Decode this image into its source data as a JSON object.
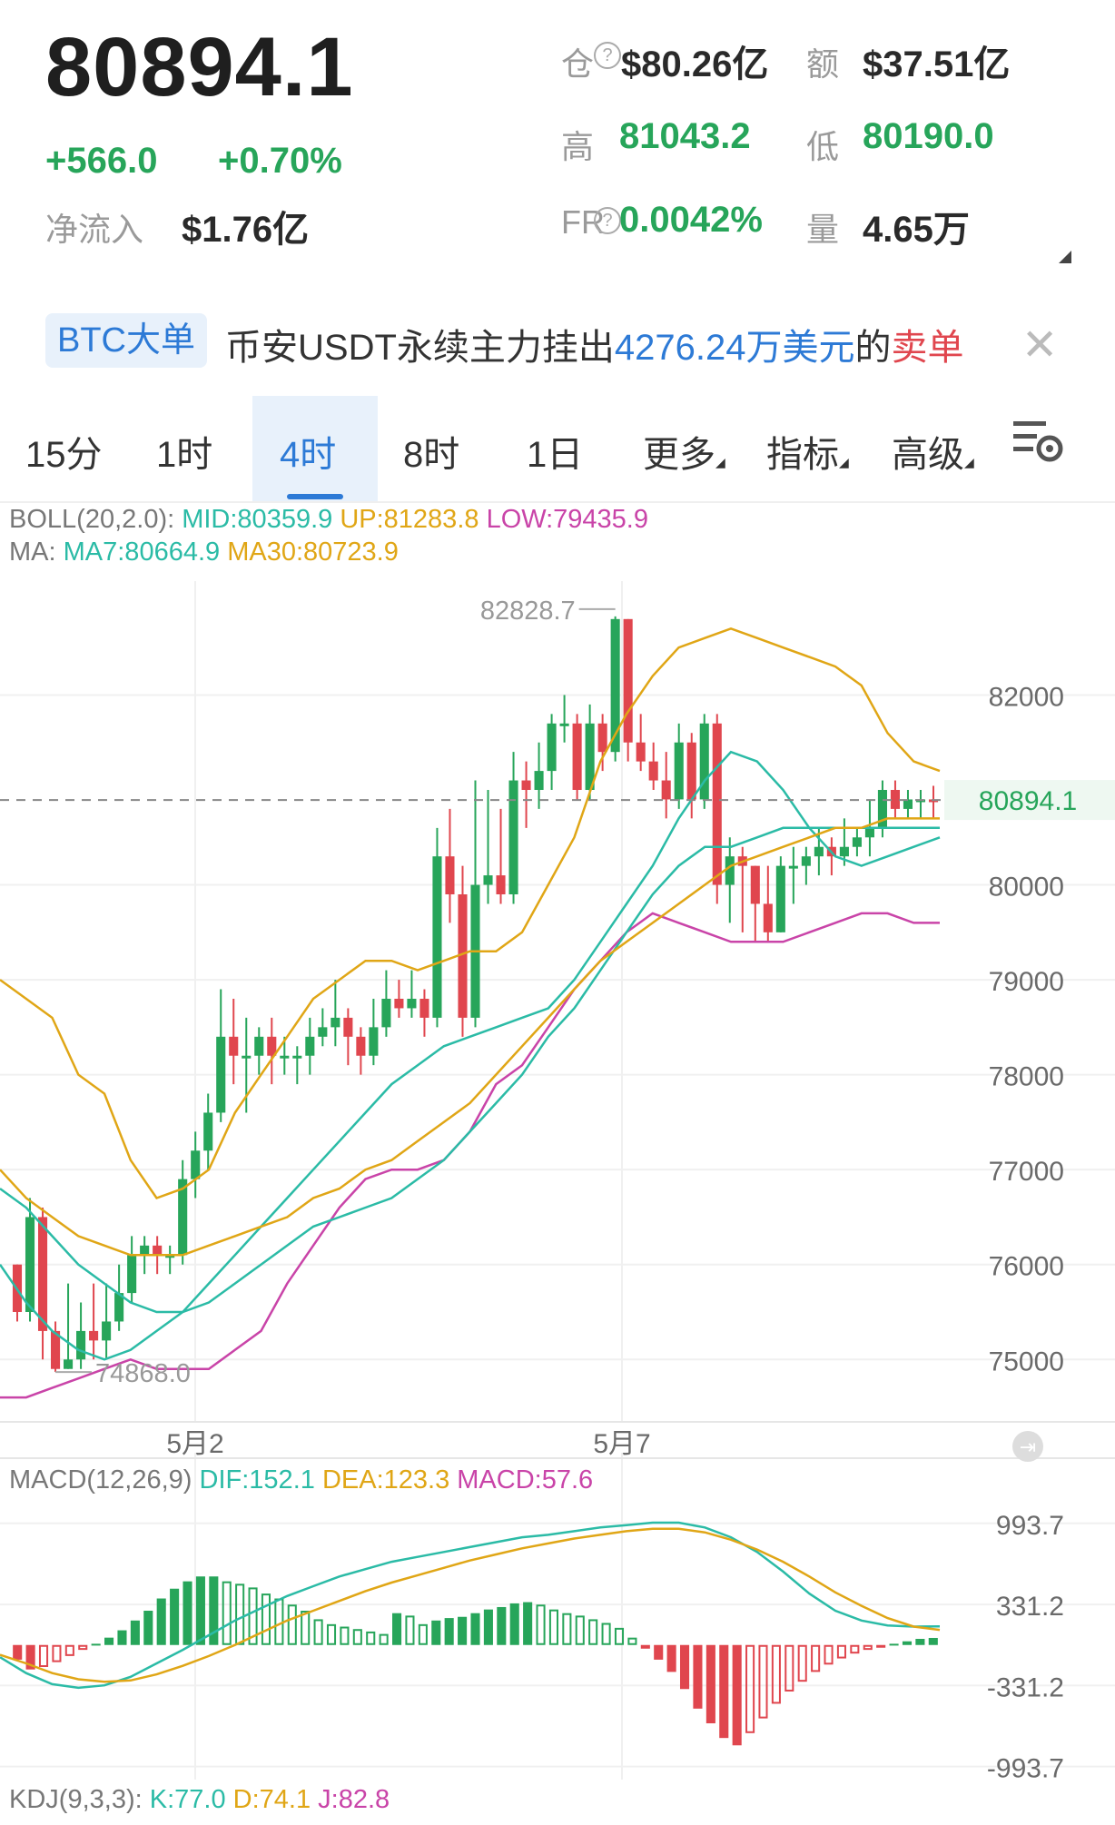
{
  "header": {
    "price": "80894.1",
    "change": "+566.0",
    "change_pct": "+0.70%",
    "net_inflow_label": "净流入",
    "net_inflow_value": "$1.76亿",
    "open_interest_label": "仓",
    "open_interest_value": "$80.26亿",
    "amount_label": "额",
    "amount_value": "$37.51亿",
    "high_label": "高",
    "high_value": "81043.2",
    "low_label": "低",
    "low_value": "80190.0",
    "fr_label": "FR",
    "fr_value": "0.0042%",
    "volume_label": "量",
    "volume_value": "4.65万"
  },
  "banner": {
    "tag": "BTC大单",
    "text_prefix": "币安USDT永续主力挂出",
    "amount": "4276.24万美元",
    "text_mid": "的",
    "side": "卖单"
  },
  "tabs": [
    {
      "label": "15分",
      "active": false
    },
    {
      "label": "1时",
      "active": false
    },
    {
      "label": "4时",
      "active": true
    },
    {
      "label": "8时",
      "active": false
    },
    {
      "label": "1日",
      "active": false
    },
    {
      "label": "更多",
      "active": false
    },
    {
      "label": "指标",
      "active": false
    },
    {
      "label": "高级",
      "active": false
    }
  ],
  "legends": {
    "boll_prefix": "BOLL(20,2.0):",
    "boll_mid": "MID:80359.9",
    "boll_up": "UP:81283.8",
    "boll_low": "LOW:79435.9",
    "ma_prefix": "MA:",
    "ma7": "MA7:80664.9",
    "ma30": "MA30:80723.9",
    "macd_prefix": "MACD(12,26,9)",
    "macd_dif": "DIF:152.1",
    "macd_dea": "DEA:123.3",
    "macd_val": "MACD:57.6",
    "kdj_prefix": "KDJ(9,3,3):",
    "kdj_k": "K:77.0",
    "kdj_d": "D:74.1",
    "kdj_j": "J:82.8"
  },
  "chart_data": {
    "type": "candlestick",
    "ylim": [
      74400,
      83200
    ],
    "y_ticks": [
      "82000",
      "80000",
      "79000",
      "78000",
      "77000",
      "76000",
      "75000"
    ],
    "x_labels": [
      "5月2",
      "5月7"
    ],
    "current_price": "80894.1",
    "annotations": {
      "high": "82828.7",
      "low": "74868.0"
    },
    "candles": [
      [
        76000,
        75500,
        76000,
        75400
      ],
      [
        75500,
        76500,
        76700,
        75400
      ],
      [
        76500,
        75300,
        76600,
        75000
      ],
      [
        75300,
        74900,
        75400,
        74868
      ],
      [
        74900,
        75000,
        75800,
        74900
      ],
      [
        75000,
        75300,
        75600,
        74900
      ],
      [
        75300,
        75200,
        75800,
        75000
      ],
      [
        75200,
        75400,
        75800,
        75000
      ],
      [
        75400,
        75700,
        76000,
        75300
      ],
      [
        75700,
        76100,
        76300,
        75600
      ],
      [
        76100,
        76200,
        76300,
        75900
      ],
      [
        76200,
        76100,
        76300,
        75900
      ],
      [
        76100,
        76100,
        76200,
        75900
      ],
      [
        76100,
        76900,
        77100,
        76000
      ],
      [
        76900,
        77200,
        77400,
        76700
      ],
      [
        77200,
        77600,
        77800,
        77000
      ],
      [
        77600,
        78400,
        78900,
        77500
      ],
      [
        78400,
        78200,
        78800,
        77900
      ],
      [
        78200,
        78200,
        78600,
        77600
      ],
      [
        78200,
        78400,
        78500,
        78000
      ],
      [
        78400,
        78200,
        78600,
        77900
      ],
      [
        78200,
        78200,
        78400,
        78000
      ],
      [
        78200,
        78200,
        78300,
        77900
      ],
      [
        78200,
        78400,
        78600,
        78000
      ],
      [
        78400,
        78500,
        78700,
        78300
      ],
      [
        78500,
        78600,
        79000,
        78300
      ],
      [
        78600,
        78400,
        78700,
        78100
      ],
      [
        78400,
        78200,
        78500,
        78000
      ],
      [
        78200,
        78500,
        78800,
        78100
      ],
      [
        78500,
        78800,
        79100,
        78400
      ],
      [
        78800,
        78700,
        79000,
        78600
      ],
      [
        78700,
        78800,
        79100,
        78600
      ],
      [
        78800,
        78600,
        78900,
        78400
      ],
      [
        78600,
        80300,
        80600,
        78500
      ],
      [
        80300,
        79900,
        80800,
        79600
      ],
      [
        79900,
        78600,
        80200,
        78400
      ],
      [
        78600,
        80000,
        81100,
        78500
      ],
      [
        80000,
        80100,
        81000,
        79800
      ],
      [
        80100,
        79900,
        80800,
        79800
      ],
      [
        79900,
        81100,
        81400,
        79800
      ],
      [
        81100,
        81000,
        81300,
        80600
      ],
      [
        81000,
        81200,
        81500,
        80800
      ],
      [
        81200,
        81700,
        81800,
        81000
      ],
      [
        81700,
        81700,
        82000,
        81500
      ],
      [
        81700,
        81000,
        81800,
        80900
      ],
      [
        81000,
        81700,
        81900,
        80900
      ],
      [
        81700,
        81400,
        81800,
        81200
      ],
      [
        81400,
        82800,
        82828.7,
        81300
      ],
      [
        82800,
        81500,
        82800,
        81300
      ],
      [
        81500,
        81300,
        81800,
        81200
      ],
      [
        81300,
        81100,
        81500,
        81000
      ],
      [
        81100,
        80900,
        81400,
        80700
      ],
      [
        80900,
        81500,
        81700,
        80800
      ],
      [
        81500,
        80900,
        81600,
        80700
      ],
      [
        80900,
        81700,
        81800,
        80800
      ],
      [
        81700,
        80000,
        81800,
        79800
      ],
      [
        80000,
        80300,
        80500,
        79600
      ],
      [
        80300,
        80200,
        80400,
        79500
      ],
      [
        80200,
        79800,
        80200,
        79400
      ],
      [
        79800,
        79500,
        80200,
        79400
      ],
      [
        79500,
        80200,
        80300,
        79500
      ],
      [
        80200,
        80200,
        80400,
        79800
      ],
      [
        80200,
        80300,
        80400,
        80000
      ],
      [
        80300,
        80400,
        80600,
        80100
      ],
      [
        80400,
        80300,
        80500,
        80100
      ],
      [
        80300,
        80400,
        80700,
        80200
      ],
      [
        80400,
        80500,
        80600,
        80300
      ],
      [
        80500,
        80600,
        80900,
        80300
      ],
      [
        80600,
        81000,
        81100,
        80500
      ],
      [
        81000,
        80800,
        81100,
        80700
      ],
      [
        80800,
        80900,
        81000,
        80700
      ],
      [
        80900,
        80900,
        81000,
        80700
      ],
      [
        80900,
        80894.1,
        81043.2,
        80700
      ]
    ],
    "boll_up": [
      79000,
      78800,
      78600,
      78000,
      77800,
      77100,
      76700,
      76800,
      77000,
      77600,
      78000,
      78400,
      78800,
      79000,
      79200,
      79200,
      79100,
      79200,
      79300,
      79300,
      79500,
      80000,
      80500,
      81300,
      81800,
      82200,
      82500,
      82600,
      82700,
      82600,
      82500,
      82400,
      82300,
      82100,
      81600,
      81300,
      81200
    ],
    "boll_mid": [
      76800,
      76600,
      76300,
      76000,
      75800,
      75600,
      75500,
      75500,
      75600,
      75800,
      76000,
      76200,
      76400,
      76500,
      76600,
      76700,
      76900,
      77100,
      77400,
      77700,
      78000,
      78400,
      78700,
      79100,
      79500,
      79900,
      80200,
      80400,
      80400,
      80500,
      80600,
      80600,
      80600,
      80600,
      80600,
      80600,
      80600
    ],
    "boll_low": [
      74600,
      74600,
      74700,
      74800,
      74900,
      75000,
      74900,
      74900,
      74900,
      75100,
      75300,
      75800,
      76200,
      76600,
      76900,
      77000,
      77000,
      77100,
      77400,
      77900,
      78100,
      78500,
      78900,
      79200,
      79500,
      79700,
      79600,
      79500,
      79400,
      79400,
      79400,
      79500,
      79600,
      79700,
      79700,
      79600,
      79600
    ],
    "ma7": [
      76000,
      75600,
      75300,
      75100,
      75000,
      75100,
      75300,
      75500,
      75800,
      76100,
      76400,
      76700,
      77000,
      77300,
      77600,
      77900,
      78100,
      78300,
      78400,
      78500,
      78600,
      78700,
      79000,
      79400,
      79800,
      80200,
      80700,
      81100,
      81400,
      81300,
      81000,
      80600,
      80300,
      80200,
      80300,
      80400,
      80500
    ],
    "ma30": [
      77000,
      76700,
      76500,
      76300,
      76200,
      76100,
      76100,
      76100,
      76200,
      76300,
      76400,
      76500,
      76700,
      76800,
      77000,
      77100,
      77300,
      77500,
      77700,
      78000,
      78300,
      78600,
      78900,
      79200,
      79400,
      79600,
      79800,
      80000,
      80200,
      80300,
      80400,
      80500,
      80600,
      80600,
      80700,
      80700,
      80700
    ],
    "macd": {
      "ylim": [
        -1100,
        1200
      ],
      "y_ticks": [
        "993.7",
        "331.2",
        "-331.2",
        "-993.7"
      ],
      "hist": [
        -120,
        -200,
        -180,
        -140,
        -90,
        -40,
        10,
        60,
        120,
        200,
        280,
        380,
        460,
        520,
        560,
        560,
        520,
        500,
        470,
        420,
        380,
        330,
        280,
        210,
        170,
        150,
        130,
        110,
        90,
        260,
        240,
        170,
        200,
        220,
        230,
        260,
        290,
        310,
        340,
        350,
        330,
        290,
        260,
        240,
        210,
        180,
        140,
        60,
        -30,
        -120,
        -220,
        -360,
        -520,
        -640,
        -760,
        -820,
        -720,
        -600,
        -480,
        -380,
        -300,
        -220,
        -160,
        -110,
        -70,
        -40,
        -20,
        10,
        30,
        50,
        57.6
      ],
      "dif": [
        -100,
        -230,
        -320,
        -350,
        -330,
        -260,
        -150,
        -40,
        80,
        200,
        300,
        400,
        480,
        560,
        620,
        680,
        720,
        760,
        800,
        840,
        880,
        900,
        930,
        960,
        980,
        1000,
        1000,
        960,
        880,
        760,
        600,
        420,
        280,
        200,
        160,
        150,
        152.1
      ],
      "dea": [
        -80,
        -150,
        -230,
        -280,
        -300,
        -290,
        -240,
        -170,
        -90,
        0,
        100,
        200,
        280,
        360,
        440,
        510,
        570,
        630,
        690,
        740,
        790,
        830,
        870,
        900,
        930,
        950,
        950,
        920,
        860,
        780,
        680,
        560,
        430,
        320,
        220,
        150,
        123.3
      ]
    }
  }
}
